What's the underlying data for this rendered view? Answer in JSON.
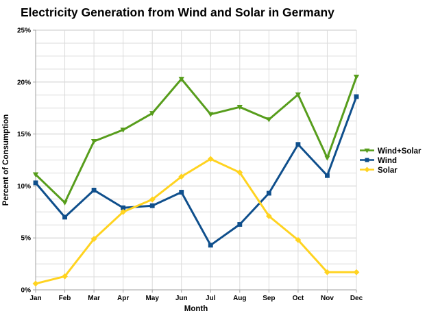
{
  "title": "Electricity Generation from Wind and Solar in Germany",
  "chart_data": {
    "type": "line",
    "title": "Electricity Generation from Wind and Solar in Germany",
    "xlabel": "Month",
    "ylabel": "Percent of Consumption",
    "categories": [
      "Jan",
      "Feb",
      "Mar",
      "Apr",
      "May",
      "Jun",
      "Jul",
      "Aug",
      "Sep",
      "Oct",
      "Nov",
      "Dec"
    ],
    "ylim": [
      0,
      25
    ],
    "y_major_step": 5,
    "y_minor_step": 1.25,
    "y_tick_labels": [
      "0%",
      "5%",
      "10%",
      "15%",
      "20%",
      "25%"
    ],
    "grid": true,
    "legend_position": "right-middle",
    "series": [
      {
        "name": "Wind+Solar",
        "marker": "triangle-down",
        "color": "#579D1C",
        "values": [
          11.1,
          8.4,
          14.3,
          15.4,
          17.0,
          20.3,
          16.9,
          17.6,
          16.4,
          18.8,
          12.7,
          20.5
        ]
      },
      {
        "name": "Wind",
        "marker": "square",
        "color": "#0F4F8C",
        "values": [
          10.3,
          7.0,
          9.6,
          7.9,
          8.1,
          9.4,
          4.3,
          6.3,
          9.3,
          14.0,
          11.0,
          18.6
        ]
      },
      {
        "name": "Solar",
        "marker": "diamond",
        "color": "#FFD320",
        "values": [
          0.6,
          1.3,
          4.9,
          7.5,
          8.7,
          10.9,
          12.6,
          11.3,
          7.1,
          4.8,
          1.7,
          1.7
        ]
      }
    ]
  },
  "colors": {
    "background": "#FFFFFF",
    "text": "#000000",
    "grid_minor": "#DBDBDB",
    "grid_major": "#C8C8C8",
    "axis": "#A0A0A0"
  }
}
